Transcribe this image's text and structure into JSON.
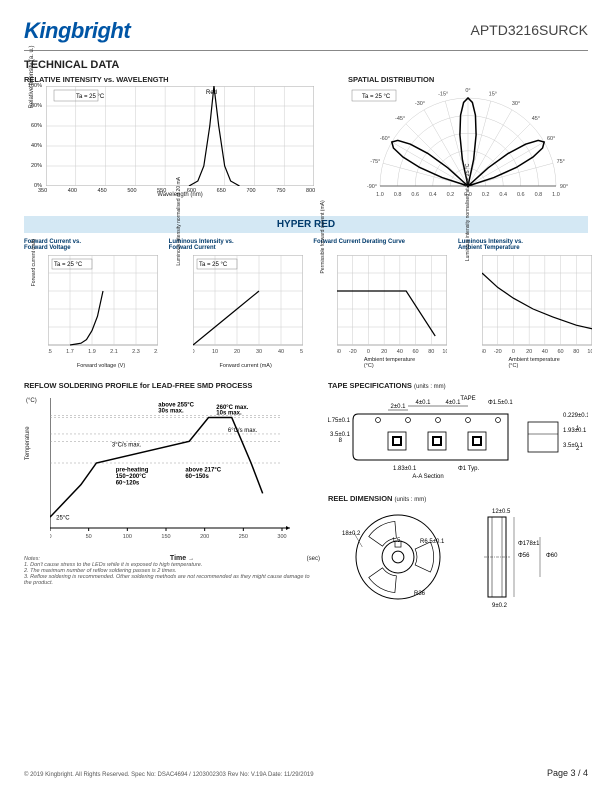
{
  "header": {
    "brand": "Kingbright",
    "part": "APTD3216SURCK"
  },
  "section_title": "TECHNICAL DATA",
  "rel_intensity": {
    "title": "RELATIVE INTENSITY vs. WAVELENGTH",
    "ylabel": "Relative Intensity (a. u.)",
    "xlabel": "Wavelength (nm)",
    "temp_note": "Ta = 25 °C",
    "peak_label": "Red",
    "xlim": [
      350,
      800
    ],
    "xtick_step": 50,
    "ylim": [
      0,
      100
    ],
    "ytick_step": 20,
    "ytick_labels": [
      "0%",
      "20%",
      "40%",
      "60%",
      "80%",
      "100%"
    ],
    "curve_points": [
      [
        590,
        0
      ],
      [
        605,
        5
      ],
      [
        615,
        20
      ],
      [
        625,
        60
      ],
      [
        632,
        100
      ],
      [
        640,
        60
      ],
      [
        650,
        20
      ],
      [
        660,
        5
      ],
      [
        675,
        0
      ]
    ],
    "grid_color": "#cccccc",
    "curve_color": "#000000"
  },
  "spatial": {
    "title": "SPATIAL DISTRIBUTION",
    "temp_note": "Ta = 25 °C",
    "angles": [
      "-90°",
      "-75°",
      "-60°",
      "-45°",
      "-30°",
      "-15°",
      "0°",
      "15°",
      "30°",
      "45°",
      "60°",
      "75°",
      "90°"
    ],
    "radial_ticks": [
      "1.0",
      "0.8",
      "0.6",
      "0.4",
      "0.2",
      "0.0",
      "0.2",
      "0.4",
      "0.6",
      "0.8",
      "1.0"
    ],
    "lobe_half_angle_deg": 15,
    "grid_color": "#cccccc",
    "curve_color": "#000000"
  },
  "hyper_band": "HYPER RED",
  "charts": [
    {
      "title": "Forward Current vs.\nForward Voltage",
      "ylabel": "Forward current (mA)",
      "xlabel": "Forward voltage (V)",
      "temp_note": "Ta = 25 °C",
      "xlim": [
        1.5,
        2.5
      ],
      "xticks": [
        "1.5",
        "1.7",
        "1.9",
        "2.1",
        "2.3",
        "2.5"
      ],
      "ylim": [
        0,
        50
      ],
      "yticks": [
        "0",
        "10",
        "20",
        "30",
        "40",
        "50"
      ],
      "curve": [
        [
          1.7,
          0
        ],
        [
          1.8,
          1
        ],
        [
          1.85,
          3
        ],
        [
          1.9,
          8
        ],
        [
          1.95,
          16
        ],
        [
          2.0,
          30
        ]
      ]
    },
    {
      "title": "Luminous Intensity vs.\nForward Current",
      "ylabel": "Luminous intensity normalised at 20 mA",
      "xlabel": "Forward current (mA)",
      "temp_note": "Ta = 25 °C",
      "xlim": [
        0,
        50
      ],
      "xticks": [
        "0",
        "10",
        "20",
        "30",
        "40",
        "50"
      ],
      "ylim": [
        0,
        2.5
      ],
      "yticks": [
        "0.0",
        "0.5",
        "1.0",
        "1.5",
        "2.0",
        "2.5"
      ],
      "curve": [
        [
          0,
          0
        ],
        [
          10,
          0.5
        ],
        [
          20,
          1.0
        ],
        [
          30,
          1.5
        ]
      ]
    },
    {
      "title": "Forward Current Derating Curve",
      "ylabel": "Permissible forward current (mA)",
      "xlabel": "Ambient temperature (°C)",
      "xlim": [
        -40,
        100
      ],
      "xticks": [
        "-40",
        "-20",
        "0",
        "20",
        "40",
        "60",
        "80",
        "100"
      ],
      "ylim": [
        0,
        50
      ],
      "yticks": [
        "0",
        "10",
        "20",
        "30",
        "40",
        "50"
      ],
      "curve": [
        [
          -40,
          30
        ],
        [
          48,
          30
        ],
        [
          85,
          5
        ]
      ]
    },
    {
      "title": "Luminous Intensity vs.\nAmbient Temperature",
      "ylabel": "Luminous intensity normalised at Ta = 25 °C",
      "xlabel": "Ambient temperature (°C)",
      "xlim": [
        -40,
        100
      ],
      "xticks": [
        "-40",
        "-20",
        "0",
        "20",
        "40",
        "60",
        "80",
        "100"
      ],
      "ylim": [
        0,
        2.5
      ],
      "yticks": [
        "0.0",
        "0.5",
        "1.0",
        "1.5",
        "2.0",
        "2.5"
      ],
      "curve": [
        [
          -40,
          2.0
        ],
        [
          -20,
          1.6
        ],
        [
          0,
          1.3
        ],
        [
          25,
          1.0
        ],
        [
          50,
          0.78
        ],
        [
          80,
          0.55
        ],
        [
          100,
          0.45
        ]
      ]
    }
  ],
  "reflow": {
    "title": "REFLOW SOLDERING PROFILE for LEAD-FREE SMD PROCESS",
    "ylabel": "Temperature",
    "ylabel_unit": "(°C)",
    "xlabel": "Time",
    "xlabel_unit": "(sec)",
    "xlim": [
      0,
      300
    ],
    "xticks": [
      "0",
      "50",
      "100",
      "150",
      "200",
      "250",
      "300"
    ],
    "ylim": [
      0,
      300
    ],
    "yticks": [
      "0",
      "50",
      "100",
      "150",
      "200",
      "250",
      "300"
    ],
    "profile": [
      [
        0,
        25
      ],
      [
        40,
        100
      ],
      [
        60,
        150
      ],
      [
        180,
        200
      ],
      [
        205,
        255
      ],
      [
        235,
        255
      ],
      [
        260,
        150
      ],
      [
        275,
        80
      ]
    ],
    "annotations": {
      "start": "25°C",
      "ramp1": "3°C/s max.",
      "preheat": "pre-heating\n150~200°C\n60~120s",
      "peak1": "above 255°C\n30s max.",
      "peak2": "260°C max.\n10s max.",
      "above217": "above 217°C\n60~150s",
      "ramp2": "6°C/s max."
    }
  },
  "tape": {
    "title": "TAPE SPECIFICATIONS",
    "units": "(units : mm)",
    "dims": {
      "a": "4±0.1",
      "b": "2±0.1",
      "c": "4±0.1",
      "d": "Φ1.5±0.1",
      "e": "1.75±0.1",
      "f": "3.5±0.1",
      "g": "8",
      "h": "1.83±0.1",
      "i": "Φ1 Typ.",
      "j": "0.229±0.1",
      "k": "1.93±0.1",
      "l": "3.5±0.1",
      "m": "A-A Section",
      "tape": "TAPE",
      "tol": "+0.1\n-0.1",
      "one": "1",
      "two": "2"
    }
  },
  "reel": {
    "title": "REEL DIMENSION",
    "units": "(units : mm)",
    "dims": {
      "a": "18±0.2",
      "b": "1.5",
      "c": "R6.5±0.1",
      "d": "R36",
      "e": "12±0.5",
      "f": "Φ178±1",
      "g": "Φ56",
      "h": "Φ60",
      "i": "9±0.2"
    }
  },
  "notes": {
    "title": "Notes:",
    "items": [
      "1. Don't cause stress to the LEDs while it is exposed to high temperature.",
      "2. The maximum number of reflow soldering passes is 2 times.",
      "3. Reflow soldering is recommended. Other soldering methods are not recommended as they might cause damage to the product."
    ]
  },
  "footer": {
    "copyright": "© 2019 Kingbright. All Rights Reserved.   Spec No: DSAC4694 / 1203002303   Rev No: V.19A   Date: 11/29/2019",
    "page": "Page 3 / 4"
  }
}
